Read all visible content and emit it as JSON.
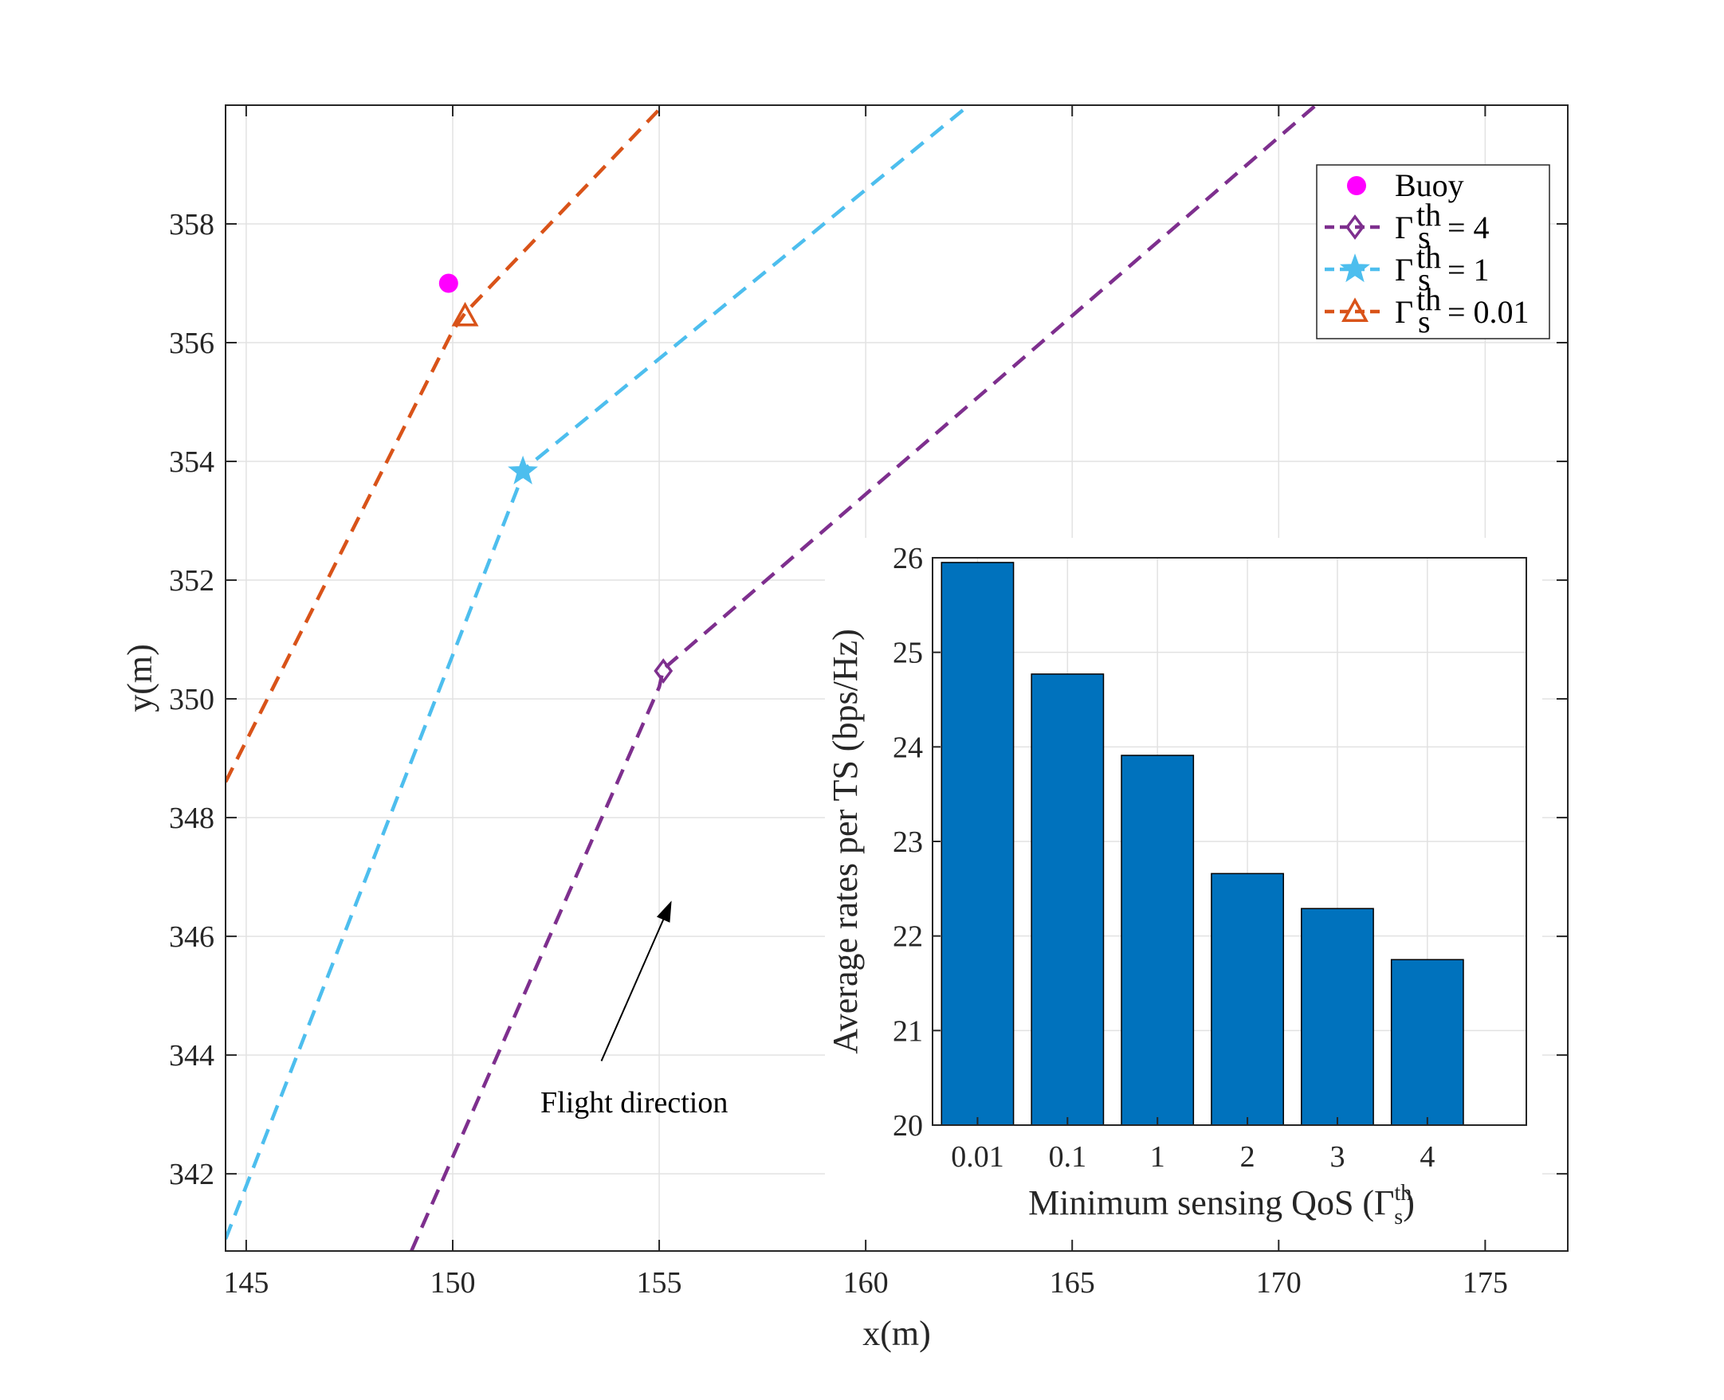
{
  "colors": {
    "buoy": "#ff00ff",
    "gamma4": "#7e2f8e",
    "gamma1": "#4dbeee",
    "gamma001": "#d95319",
    "bar": "#0072bd",
    "axis": "#262626"
  },
  "chart_data": [
    {
      "type": "line",
      "name": "trajectory",
      "xlabel": "x(m)",
      "ylabel": "y(m)",
      "xlim": [
        144.5,
        177
      ],
      "ylim": [
        340.7,
        360
      ],
      "xticks": [
        145,
        150,
        155,
        160,
        165,
        170,
        175
      ],
      "yticks": [
        342,
        344,
        346,
        348,
        350,
        352,
        354,
        356,
        358
      ],
      "grid": true,
      "buoy": {
        "label": "Buoy",
        "x": 149.9,
        "y": 357.0
      },
      "series": [
        {
          "name": "Γ_s^th = 4",
          "legend_prefix": "Γ",
          "legend_sub": "s",
          "legend_sup": "th",
          "legend_value": "= 4",
          "marker": "diamond",
          "color_key": "gamma4",
          "x": [
            149.0,
            155.0,
            155.1,
            170.9
          ],
          "y": [
            340.7,
            350.2,
            350.5,
            360.0
          ],
          "marker_point": {
            "x": 155.1,
            "y": 350.47
          }
        },
        {
          "name": "Γ_s^th = 1",
          "legend_prefix": "Γ",
          "legend_sub": "s",
          "legend_sup": "th",
          "legend_value": "= 1",
          "marker": "star",
          "color_key": "gamma1",
          "x": [
            144.5,
            151.6,
            151.7,
            162.5
          ],
          "y": [
            340.9,
            353.6,
            353.85,
            360.0
          ],
          "marker_point": {
            "x": 151.7,
            "y": 353.83
          }
        },
        {
          "name": "Γ_s^th = 0.01",
          "legend_prefix": "Γ",
          "legend_sub": "s",
          "legend_sup": "th",
          "legend_value": "= 0.01",
          "marker": "triangle",
          "color_key": "gamma001",
          "x": [
            144.5,
            150.0,
            150.3,
            155.1
          ],
          "y": [
            348.6,
            356.2,
            356.5,
            360.0
          ],
          "marker_point": {
            "x": 150.3,
            "y": 356.45
          }
        }
      ],
      "annotation": {
        "text": "Flight direction",
        "arrow_from": {
          "x": 153.6,
          "y": 343.9
        },
        "arrow_to": {
          "x": 155.3,
          "y": 346.6
        }
      }
    },
    {
      "type": "bar",
      "name": "inset",
      "categories": [
        "0.01",
        "0.1",
        "1",
        "2",
        "3",
        "4"
      ],
      "values": [
        25.95,
        24.77,
        23.91,
        22.66,
        22.29,
        21.75
      ],
      "xlabel_main": "Minimum sensing QoS (Γ",
      "xlabel_sub": "s",
      "xlabel_sup": "th",
      "xlabel_close": ")",
      "ylabel": "Average rates per TS (bps/Hz)",
      "ylim": [
        20,
        26
      ],
      "yticks": [
        20,
        21,
        22,
        23,
        24,
        25,
        26
      ],
      "xlim": [
        0.5,
        7.1
      ],
      "grid": true
    }
  ]
}
